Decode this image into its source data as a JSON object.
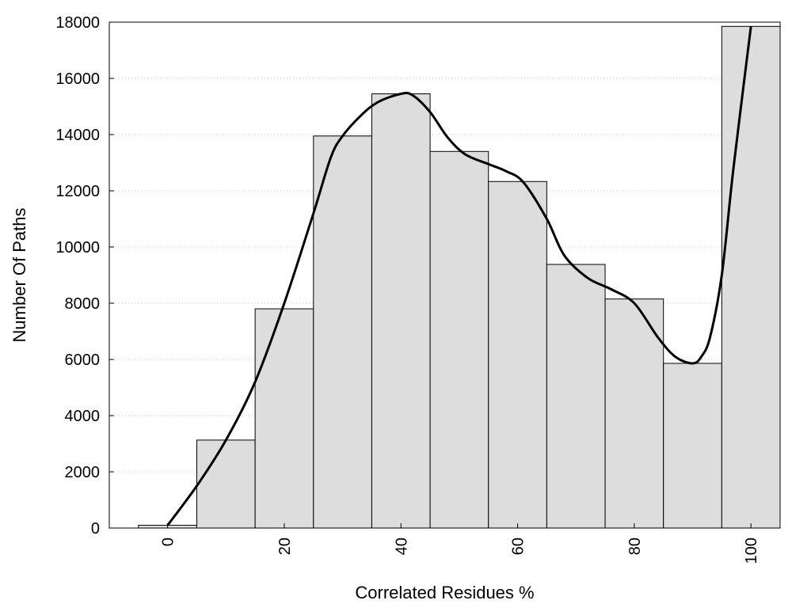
{
  "chart_data": {
    "type": "bar",
    "title": "",
    "xlabel": "Correlated Residues %",
    "ylabel": "Number Of Paths",
    "xlim": [
      -10,
      100
    ],
    "ylim": [
      0,
      18000
    ],
    "bin_width": 10,
    "x_ticks": [
      "0",
      "20",
      "40",
      "60",
      "80",
      "100"
    ],
    "y_ticks": [
      "0",
      "2000",
      "4000",
      "6000",
      "8000",
      "10000",
      "12000",
      "14000",
      "16000",
      "18000"
    ],
    "grid": "horizontal dotted",
    "bar_color": "#dddddd",
    "curve_color": "#000000",
    "bins": [
      {
        "center": 0,
        "value": 100
      },
      {
        "center": 10,
        "value": 3130
      },
      {
        "center": 20,
        "value": 7800
      },
      {
        "center": 30,
        "value": 13950
      },
      {
        "center": 40,
        "value": 15450
      },
      {
        "center": 50,
        "value": 13400
      },
      {
        "center": 60,
        "value": 12330
      },
      {
        "center": 70,
        "value": 9380
      },
      {
        "center": 80,
        "value": 8150
      },
      {
        "center": 90,
        "value": 5860
      },
      {
        "center": 100,
        "value": 17850
      }
    ],
    "curve": {
      "x": [
        0,
        5,
        10,
        15,
        20,
        25,
        28,
        30,
        33,
        36,
        40,
        42,
        45,
        48,
        51,
        55,
        58,
        61,
        65,
        68,
        72,
        76,
        80,
        84,
        87,
        90,
        91.5,
        93,
        95,
        97,
        100
      ],
      "y": [
        100,
        1500,
        3130,
        5200,
        8000,
        11200,
        13200,
        13950,
        14650,
        15150,
        15450,
        15400,
        14800,
        13900,
        13300,
        12950,
        12700,
        12300,
        11000,
        9700,
        8900,
        8500,
        8000,
        6800,
        6100,
        5860,
        6100,
        6800,
        9000,
        12800,
        17850
      ]
    }
  }
}
